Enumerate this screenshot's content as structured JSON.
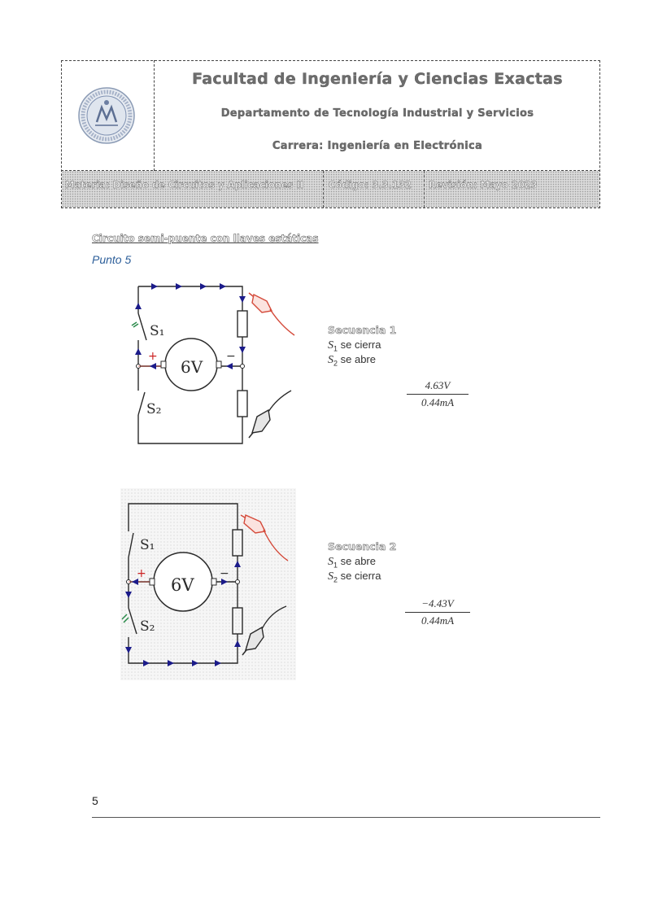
{
  "header": {
    "faculty": "Facultad de Ingeniería y Ciencias Exactas",
    "department": "Departamento de Tecnología Industrial y Servicios",
    "career": "Carrera: Ingeniería en Electrónica",
    "subject": "Materia: Diseño de Circuitos y Aplicaciones II",
    "code": "Código: 3.3.132",
    "revision": "Revisión: Mayo 2023"
  },
  "section": {
    "title": "Circuito semi-puente con llaves estáticas",
    "point": "Punto 5"
  },
  "sequences": [
    {
      "title": "Secuencia 1",
      "line1_var": "S",
      "line1_sub": "1",
      "line1_text": " se cierra",
      "line2_var": "S",
      "line2_sub": "2",
      "line2_text": " se abre",
      "numerator": "4.63V",
      "denominator": "0.44mA"
    },
    {
      "title": "Secuencia 2",
      "line1_var": "S",
      "line1_sub": "1",
      "line1_text": " se abre",
      "line2_var": "S",
      "line2_sub": "2",
      "line2_text": " se cierra",
      "numerator": "−4.43V",
      "denominator": "0.44mA"
    }
  ],
  "diagram": {
    "source_label": "6V",
    "switch1_label": "S₁",
    "switch2_label": "S₂",
    "plus": "+",
    "minus": "−",
    "colors": {
      "wire": "#2a2a2a",
      "arrow": "#1b1b8a",
      "probe_red": "#d44a3a",
      "plus": "#cc2222",
      "closed_switch": "#2a8a4a"
    }
  },
  "footer": {
    "page_number": "5"
  }
}
